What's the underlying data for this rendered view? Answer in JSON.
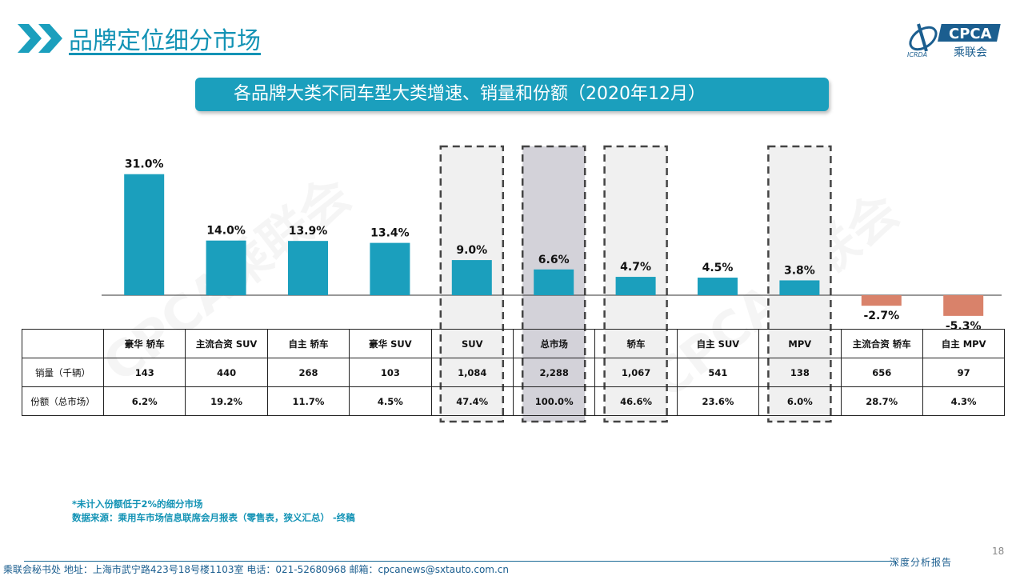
{
  "header": {
    "title": "品牌定位细分市场"
  },
  "logo": {
    "brand": "CPCA",
    "subtitle": "乘联会",
    "mark": "ICRDA"
  },
  "watermark": "CPCA乘联会",
  "colors": {
    "positive": "#1b9fbd",
    "negative": "#d9826a",
    "accent": "#1393b5",
    "highlight_fill": "#d3d2d9",
    "light_fill": "#f0f0f0"
  },
  "chart_data": {
    "type": "bar",
    "title": "各品牌大类不同车型大类增速、销量和份额（2020年12月）",
    "categories": [
      "豪华 轿车",
      "主流合资 SUV",
      "自主 轿车",
      "豪华 SUV",
      "SUV",
      "总市场",
      "轿车",
      "自主 SUV",
      "MPV",
      "主流合资 轿车",
      "自主 MPV"
    ],
    "series": [
      {
        "values": [
          31.0,
          14.0,
          13.9,
          13.4,
          9.0,
          6.6,
          4.7,
          4.5,
          3.8,
          -2.7,
          -5.3
        ]
      }
    ],
    "data_labels": [
      "31.0%",
      "14.0%",
      "13.9%",
      "13.4%",
      "9.0%",
      "6.6%",
      "4.7%",
      "4.5%",
      "3.8%",
      "-2.7%",
      "-5.3%"
    ],
    "highlighted_categories": [
      "SUV",
      "总市场",
      "轿车",
      "MPV"
    ],
    "ylim": [
      -6,
      31
    ],
    "grid": false,
    "table": {
      "row_headers": [
        "销量（千辆）",
        "份额（总市场）"
      ],
      "sales": [
        "143",
        "440",
        "268",
        "103",
        "1,084",
        "2,288",
        "1,067",
        "541",
        "138",
        "656",
        "97"
      ],
      "share": [
        "6.2%",
        "19.2%",
        "11.7%",
        "4.5%",
        "47.4%",
        "100.0%",
        "46.6%",
        "23.6%",
        "6.0%",
        "28.7%",
        "4.3%"
      ]
    }
  },
  "notes": {
    "line1": "*未计入份额低于2%的细分市场",
    "line2": "数据来源：乘用车市场信息联席会月报表（零售表，狭义汇总）  -终稿"
  },
  "page_number": "18",
  "footer": {
    "contact": "乘联会秘书处    地址：上海市武宁路423号18号楼1103室    电话：021-52680968    邮箱：cpcanews@sxtauto.com.cn",
    "tag": "深度分析报告"
  }
}
